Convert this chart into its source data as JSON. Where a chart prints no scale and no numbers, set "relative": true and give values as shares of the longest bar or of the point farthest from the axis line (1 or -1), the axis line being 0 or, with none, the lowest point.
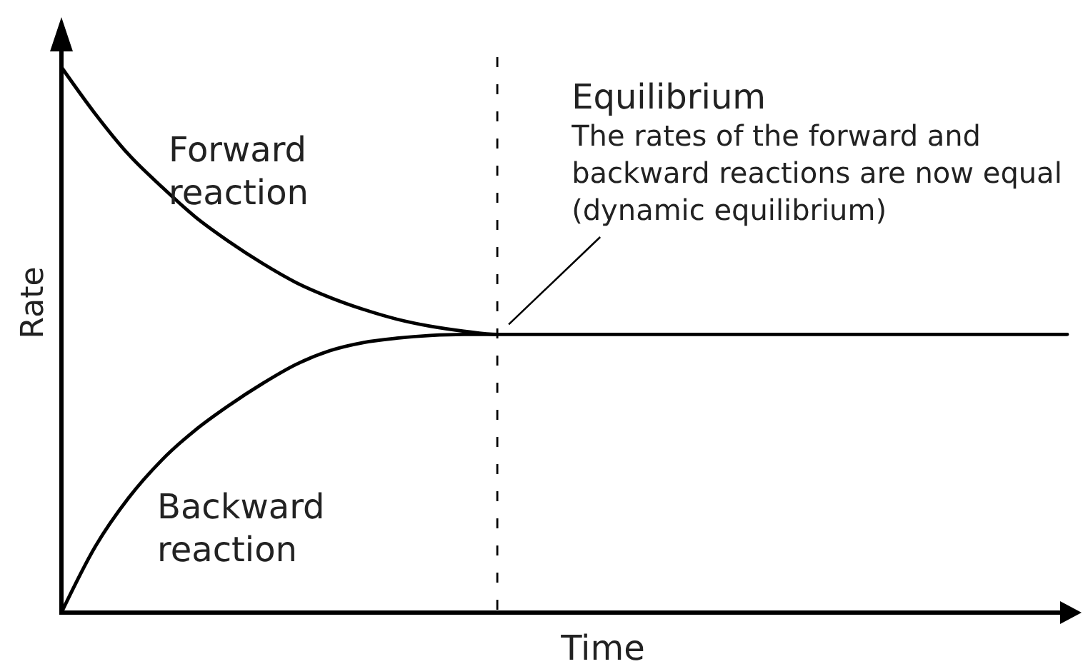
{
  "chart_data": {
    "type": "line",
    "relative": true,
    "xlabel": "Time",
    "ylabel": "Rate",
    "categories": [
      null,
      null,
      null,
      null,
      null,
      null,
      null,
      null,
      null,
      null,
      null,
      null,
      null,
      null,
      null,
      null,
      null,
      null,
      null,
      null,
      null,
      null,
      null,
      null,
      null,
      null,
      null,
      null,
      null,
      null,
      null
    ],
    "series": [
      {
        "name": "Forward reaction",
        "color": "#000000",
        "values": [
          1.0,
          0.915,
          0.84,
          0.78,
          0.725,
          0.68,
          0.64,
          0.605,
          0.578,
          0.556,
          0.538,
          0.525,
          0.516,
          0.51,
          0.51,
          0.51,
          0.51,
          0.51,
          0.51,
          0.51,
          0.51,
          0.51,
          0.51,
          0.51,
          0.51,
          0.51,
          0.51,
          0.51,
          0.51,
          0.51,
          0.51
        ]
      },
      {
        "name": "Backward reaction",
        "color": "#000000",
        "values": [
          0,
          0.12,
          0.21,
          0.28,
          0.335,
          0.38,
          0.42,
          0.455,
          0.48,
          0.495,
          0.503,
          0.508,
          0.51,
          0.51,
          null,
          null,
          null,
          null,
          null,
          null,
          null,
          null,
          null,
          null,
          null,
          null,
          null,
          null,
          null,
          null,
          null
        ]
      }
    ],
    "annotations": [
      "Equilibrium",
      "The rates of the forward and backward reactions are now equal (dynamic equilibrium)"
    ]
  }
}
